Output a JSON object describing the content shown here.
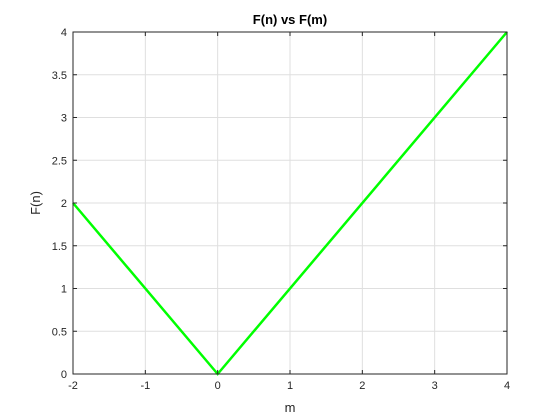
{
  "chart_data": {
    "type": "line",
    "title": "F(n) vs F(m)",
    "xlabel": "m",
    "ylabel": "F(n)",
    "xlim": [
      -2,
      4
    ],
    "ylim": [
      0,
      4
    ],
    "x_ticks": [
      -2,
      -1,
      0,
      1,
      2,
      3,
      4
    ],
    "y_ticks": [
      0,
      0.5,
      1,
      1.5,
      2,
      2.5,
      3,
      3.5,
      4
    ],
    "x_tick_labels": [
      "-2",
      "-1",
      "0",
      "1",
      "2",
      "3",
      "4"
    ],
    "y_tick_labels": [
      "0",
      "0.5",
      "1",
      "1.5",
      "2",
      "2.5",
      "3",
      "3.5",
      "4"
    ],
    "grid": true,
    "series": [
      {
        "x": [
          -2,
          0,
          4
        ],
        "y": [
          2,
          0,
          4
        ],
        "color": "#00ff00"
      }
    ]
  }
}
